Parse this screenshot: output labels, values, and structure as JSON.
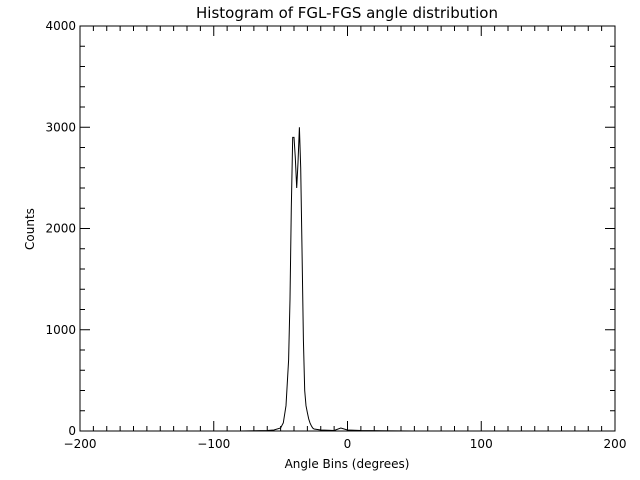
{
  "chart_data": {
    "type": "line",
    "title": "Histogram of FGL-FGS angle distribution",
    "xlabel": "Angle Bins (degrees)",
    "ylabel": "Counts",
    "xlim": [
      -200,
      200
    ],
    "ylim": [
      0,
      4000
    ],
    "x_ticks": [
      -200,
      -100,
      0,
      100,
      200
    ],
    "y_ticks": [
      0,
      1000,
      2000,
      3000,
      4000
    ],
    "grid": false,
    "legend": "none",
    "series": [
      {
        "color": "#000000",
        "x": [
          -200,
          -80,
          -60,
          -55,
          -50,
          -48,
          -46,
          -44,
          -43,
          -42,
          -41,
          -40,
          -39,
          -38,
          -37,
          -36,
          -35,
          -34,
          -33,
          -32,
          -31,
          -30,
          -29,
          -28,
          -27,
          -26,
          -25,
          -20,
          -10,
          -5,
          0,
          10,
          50,
          200
        ],
        "y": [
          0,
          0,
          5,
          10,
          30,
          80,
          250,
          700,
          1300,
          2200,
          2900,
          2900,
          2700,
          2400,
          2650,
          3000,
          2600,
          1800,
          900,
          400,
          250,
          180,
          120,
          80,
          50,
          30,
          20,
          10,
          5,
          30,
          10,
          5,
          0,
          0
        ]
      }
    ]
  }
}
